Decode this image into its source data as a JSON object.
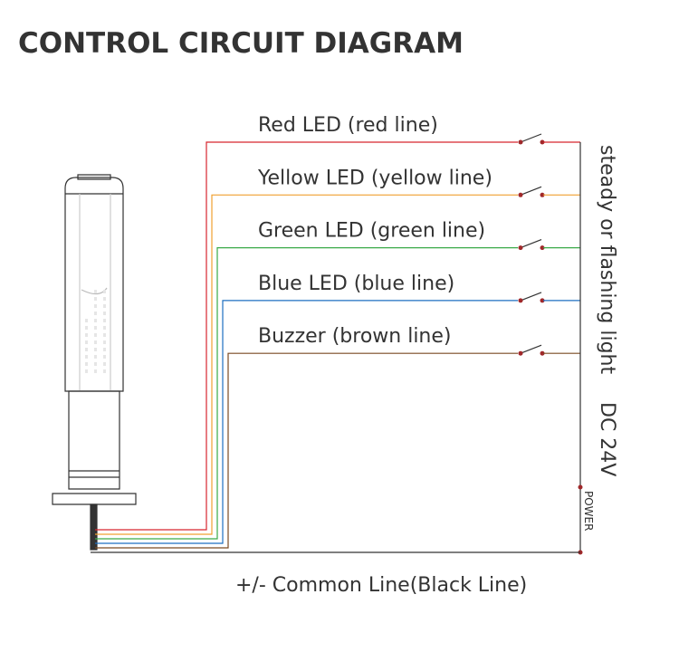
{
  "header": {
    "title": "CONTROL CIRCUIT DIAGRAM"
  },
  "wires": [
    {
      "label": "Red LED (red line)"
    },
    {
      "label": "Yellow LED (yellow line)"
    },
    {
      "label": "Green LED (green line)"
    },
    {
      "label": "Blue LED (blue line)"
    },
    {
      "label": "Buzzer (brown line)"
    }
  ],
  "side_labels": {
    "mode": "steady or flashing light",
    "voltage": "DC 24V",
    "power": "POWER"
  },
  "common_line": {
    "label": "+/- Common Line(Black Line)"
  }
}
